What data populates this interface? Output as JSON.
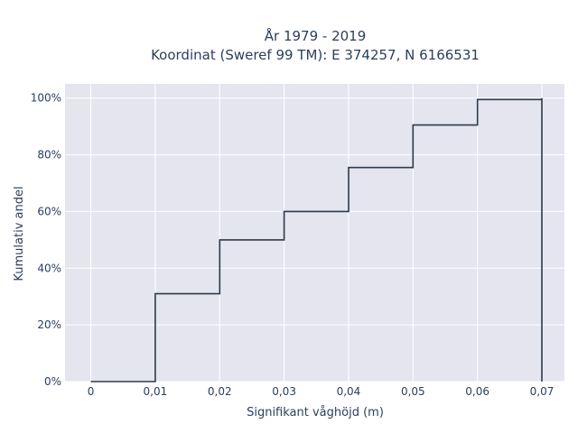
{
  "chart_data": {
    "type": "line",
    "line_shape": "step",
    "title_lines": [
      "År 1979 - 2019",
      "Koordinat (Sweref 99 TM): E 374257, N 6166531"
    ],
    "xlabel": "Signifikant våghöjd (m)",
    "ylabel": "Kumulativ andel",
    "xlim": [
      -0.004,
      0.0735
    ],
    "ylim": [
      0,
      1.05
    ],
    "x_ticks": [
      0,
      0.01,
      0.02,
      0.03,
      0.04,
      0.05,
      0.06,
      0.07
    ],
    "x_tick_labels": [
      "0",
      "0,01",
      "0,02",
      "0,03",
      "0,04",
      "0,05",
      "0,06",
      "0,07"
    ],
    "y_ticks": [
      0,
      0.2,
      0.4,
      0.6,
      0.8,
      1.0
    ],
    "y_tick_labels": [
      "0%",
      "20%",
      "40%",
      "60%",
      "80%",
      "100%"
    ],
    "grid": true,
    "series": [
      {
        "x": [
          0,
          0.01,
          0.01,
          0.02,
          0.02,
          0.03,
          0.03,
          0.04,
          0.04,
          0.05,
          0.05,
          0.06,
          0.06,
          0.07,
          0.07,
          0.07
        ],
        "y": [
          0,
          0,
          0.31,
          0.31,
          0.5,
          0.5,
          0.6,
          0.6,
          0.755,
          0.755,
          0.905,
          0.905,
          0.995,
          0.995,
          1.0,
          0
        ],
        "color": "#2e3a4a"
      }
    ],
    "colors": {
      "plot_bg": "#e5e5f0",
      "grid": "#ffffff",
      "text": "#2a3f5f"
    }
  }
}
